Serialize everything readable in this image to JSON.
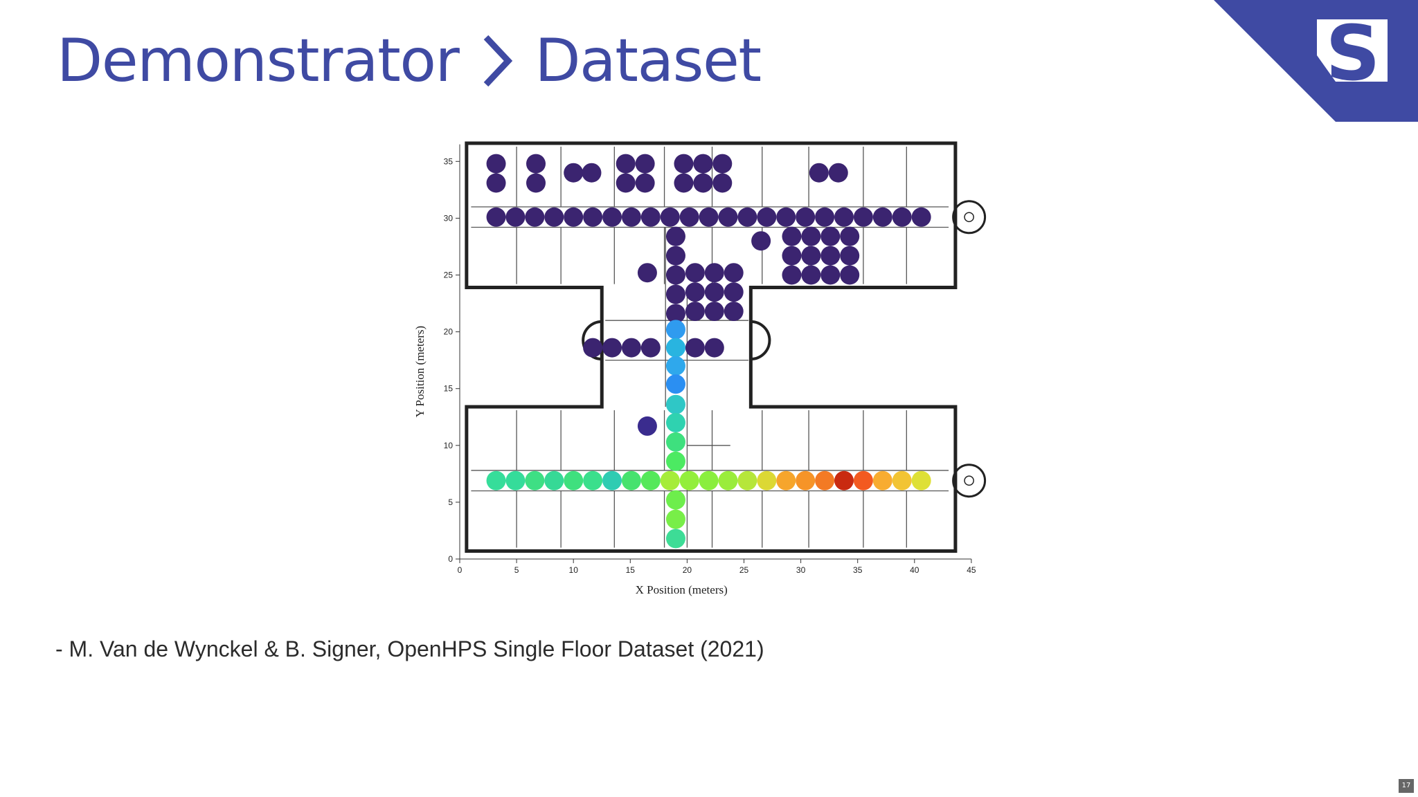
{
  "title": {
    "part1": "Demonstrator",
    "part2": "Dataset"
  },
  "citation": "- M. Van de Wynckel & B. Signer, OpenHPS Single Floor Dataset (2021)",
  "page_number": "17",
  "colors": {
    "brand": "#3f4aa3",
    "logo_letter": "S"
  },
  "chart_data": {
    "type": "scatter",
    "xlabel": "X Position (meters)",
    "ylabel": "Y Position (meters)",
    "xlim": [
      0,
      45
    ],
    "ylim": [
      0,
      36
    ],
    "x_ticks": [
      0,
      5,
      10,
      15,
      20,
      25,
      30,
      35,
      40,
      45
    ],
    "y_ticks": [
      0,
      5,
      10,
      15,
      20,
      25,
      30,
      35
    ],
    "background": "floor plan (building layout)",
    "color_scale": "turbo (low error = dark purple, high error = red)",
    "points": [
      {
        "x": 3.2,
        "y": 34.8,
        "c": "#3b2470"
      },
      {
        "x": 3.2,
        "y": 33.1,
        "c": "#3b2470"
      },
      {
        "x": 6.7,
        "y": 34.8,
        "c": "#3b2470"
      },
      {
        "x": 6.7,
        "y": 33.1,
        "c": "#3b2470"
      },
      {
        "x": 10.0,
        "y": 34.0,
        "c": "#3b2470"
      },
      {
        "x": 11.6,
        "y": 34.0,
        "c": "#3b2470"
      },
      {
        "x": 14.6,
        "y": 34.8,
        "c": "#3b2470"
      },
      {
        "x": 16.3,
        "y": 34.8,
        "c": "#3b2470"
      },
      {
        "x": 14.6,
        "y": 33.1,
        "c": "#3b2470"
      },
      {
        "x": 16.3,
        "y": 33.1,
        "c": "#3b2470"
      },
      {
        "x": 19.7,
        "y": 34.8,
        "c": "#3b2470"
      },
      {
        "x": 21.4,
        "y": 34.8,
        "c": "#3b2470"
      },
      {
        "x": 23.1,
        "y": 34.8,
        "c": "#3b2470"
      },
      {
        "x": 19.7,
        "y": 33.1,
        "c": "#3b2470"
      },
      {
        "x": 21.4,
        "y": 33.1,
        "c": "#3b2470"
      },
      {
        "x": 23.1,
        "y": 33.1,
        "c": "#3b2470"
      },
      {
        "x": 31.6,
        "y": 34.0,
        "c": "#3b2470"
      },
      {
        "x": 33.3,
        "y": 34.0,
        "c": "#3b2470"
      },
      {
        "x": 3.2,
        "y": 30.1,
        "c": "#3b2470"
      },
      {
        "x": 4.9,
        "y": 30.1,
        "c": "#3b2470"
      },
      {
        "x": 6.6,
        "y": 30.1,
        "c": "#3b2470"
      },
      {
        "x": 8.3,
        "y": 30.1,
        "c": "#3b2470"
      },
      {
        "x": 10.0,
        "y": 30.1,
        "c": "#3b2470"
      },
      {
        "x": 11.7,
        "y": 30.1,
        "c": "#3b2470"
      },
      {
        "x": 13.4,
        "y": 30.1,
        "c": "#3b2470"
      },
      {
        "x": 15.1,
        "y": 30.1,
        "c": "#3b2470"
      },
      {
        "x": 16.8,
        "y": 30.1,
        "c": "#3b2470"
      },
      {
        "x": 18.5,
        "y": 30.1,
        "c": "#3b2470"
      },
      {
        "x": 20.2,
        "y": 30.1,
        "c": "#3b2470"
      },
      {
        "x": 21.9,
        "y": 30.1,
        "c": "#3b2470"
      },
      {
        "x": 23.6,
        "y": 30.1,
        "c": "#3b2470"
      },
      {
        "x": 25.3,
        "y": 30.1,
        "c": "#3b2470"
      },
      {
        "x": 27.0,
        "y": 30.1,
        "c": "#3b2470"
      },
      {
        "x": 28.7,
        "y": 30.1,
        "c": "#3b2470"
      },
      {
        "x": 30.4,
        "y": 30.1,
        "c": "#3b2470"
      },
      {
        "x": 32.1,
        "y": 30.1,
        "c": "#3b2470"
      },
      {
        "x": 33.8,
        "y": 30.1,
        "c": "#3b2470"
      },
      {
        "x": 35.5,
        "y": 30.1,
        "c": "#3b2470"
      },
      {
        "x": 37.2,
        "y": 30.1,
        "c": "#3b2470"
      },
      {
        "x": 38.9,
        "y": 30.1,
        "c": "#3b2470"
      },
      {
        "x": 40.6,
        "y": 30.1,
        "c": "#3b2470"
      },
      {
        "x": 19.0,
        "y": 28.4,
        "c": "#3b2470"
      },
      {
        "x": 19.0,
        "y": 26.7,
        "c": "#3b2470"
      },
      {
        "x": 19.0,
        "y": 25.0,
        "c": "#3b2470"
      },
      {
        "x": 19.0,
        "y": 23.3,
        "c": "#3b2470"
      },
      {
        "x": 19.0,
        "y": 21.6,
        "c": "#3b2470"
      },
      {
        "x": 16.5,
        "y": 25.2,
        "c": "#3b2470"
      },
      {
        "x": 26.5,
        "y": 28.0,
        "c": "#3b2470"
      },
      {
        "x": 20.7,
        "y": 25.2,
        "c": "#3b2470"
      },
      {
        "x": 22.4,
        "y": 25.2,
        "c": "#3b2470"
      },
      {
        "x": 24.1,
        "y": 25.2,
        "c": "#3b2470"
      },
      {
        "x": 20.7,
        "y": 23.5,
        "c": "#3b2470"
      },
      {
        "x": 22.4,
        "y": 23.5,
        "c": "#3b2470"
      },
      {
        "x": 24.1,
        "y": 23.5,
        "c": "#3b2470"
      },
      {
        "x": 20.7,
        "y": 21.8,
        "c": "#3b2470"
      },
      {
        "x": 22.4,
        "y": 21.8,
        "c": "#3b2470"
      },
      {
        "x": 24.1,
        "y": 21.8,
        "c": "#3b2470"
      },
      {
        "x": 29.2,
        "y": 28.4,
        "c": "#3b2470"
      },
      {
        "x": 30.9,
        "y": 28.4,
        "c": "#3b2470"
      },
      {
        "x": 32.6,
        "y": 28.4,
        "c": "#3b2470"
      },
      {
        "x": 34.3,
        "y": 28.4,
        "c": "#3b2470"
      },
      {
        "x": 29.2,
        "y": 26.7,
        "c": "#3b2470"
      },
      {
        "x": 30.9,
        "y": 26.7,
        "c": "#3b2470"
      },
      {
        "x": 32.6,
        "y": 26.7,
        "c": "#3b2470"
      },
      {
        "x": 34.3,
        "y": 26.7,
        "c": "#3b2470"
      },
      {
        "x": 29.2,
        "y": 25.0,
        "c": "#3b2470"
      },
      {
        "x": 30.9,
        "y": 25.0,
        "c": "#3b2470"
      },
      {
        "x": 32.6,
        "y": 25.0,
        "c": "#3b2470"
      },
      {
        "x": 34.3,
        "y": 25.0,
        "c": "#3b2470"
      },
      {
        "x": 11.7,
        "y": 18.6,
        "c": "#3b2470"
      },
      {
        "x": 13.4,
        "y": 18.6,
        "c": "#3b2470"
      },
      {
        "x": 15.1,
        "y": 18.6,
        "c": "#3b2470"
      },
      {
        "x": 16.8,
        "y": 18.6,
        "c": "#3b2470"
      },
      {
        "x": 20.7,
        "y": 18.6,
        "c": "#3b2470"
      },
      {
        "x": 22.4,
        "y": 18.6,
        "c": "#3b2470"
      },
      {
        "x": 16.5,
        "y": 11.7,
        "c": "#3a2c8e"
      },
      {
        "x": 19.0,
        "y": 20.2,
        "c": "#2f9bef"
      },
      {
        "x": 19.0,
        "y": 18.6,
        "c": "#29b4e0"
      },
      {
        "x": 19.0,
        "y": 17.0,
        "c": "#2fa8ec"
      },
      {
        "x": 19.0,
        "y": 15.4,
        "c": "#2b8ff2"
      },
      {
        "x": 19.0,
        "y": 13.6,
        "c": "#2fc7c6"
      },
      {
        "x": 19.0,
        "y": 12.0,
        "c": "#2fd2b0"
      },
      {
        "x": 19.0,
        "y": 10.3,
        "c": "#3ee07e"
      },
      {
        "x": 19.0,
        "y": 8.6,
        "c": "#4cea62"
      },
      {
        "x": 3.2,
        "y": 6.9,
        "c": "#36dd9a"
      },
      {
        "x": 4.9,
        "y": 6.9,
        "c": "#35dc9a"
      },
      {
        "x": 6.6,
        "y": 6.9,
        "c": "#3edf84"
      },
      {
        "x": 8.3,
        "y": 6.9,
        "c": "#36d996"
      },
      {
        "x": 10.0,
        "y": 6.9,
        "c": "#3fe07e"
      },
      {
        "x": 11.7,
        "y": 6.9,
        "c": "#3adf8c"
      },
      {
        "x": 13.4,
        "y": 6.9,
        "c": "#2fccb2"
      },
      {
        "x": 15.1,
        "y": 6.9,
        "c": "#46e26e"
      },
      {
        "x": 16.8,
        "y": 6.9,
        "c": "#55e85a"
      },
      {
        "x": 18.5,
        "y": 6.9,
        "c": "#a6ec3a"
      },
      {
        "x": 20.2,
        "y": 6.9,
        "c": "#93ee3c"
      },
      {
        "x": 21.9,
        "y": 6.9,
        "c": "#8aee3e"
      },
      {
        "x": 23.6,
        "y": 6.9,
        "c": "#9aec3c"
      },
      {
        "x": 25.3,
        "y": 6.9,
        "c": "#b6e63a"
      },
      {
        "x": 27.0,
        "y": 6.9,
        "c": "#dcd834"
      },
      {
        "x": 28.7,
        "y": 6.9,
        "c": "#f6a52c"
      },
      {
        "x": 30.4,
        "y": 6.9,
        "c": "#f69428"
      },
      {
        "x": 32.1,
        "y": 6.9,
        "c": "#f37a24"
      },
      {
        "x": 33.8,
        "y": 6.9,
        "c": "#c92a10"
      },
      {
        "x": 35.5,
        "y": 6.9,
        "c": "#f35a20"
      },
      {
        "x": 37.2,
        "y": 6.9,
        "c": "#f8ac30"
      },
      {
        "x": 38.9,
        "y": 6.9,
        "c": "#f2c434"
      },
      {
        "x": 40.6,
        "y": 6.9,
        "c": "#dee036"
      },
      {
        "x": 19.0,
        "y": 5.2,
        "c": "#6dee4c"
      },
      {
        "x": 19.0,
        "y": 3.5,
        "c": "#78ee48"
      },
      {
        "x": 19.0,
        "y": 1.8,
        "c": "#3ddc96"
      }
    ]
  }
}
